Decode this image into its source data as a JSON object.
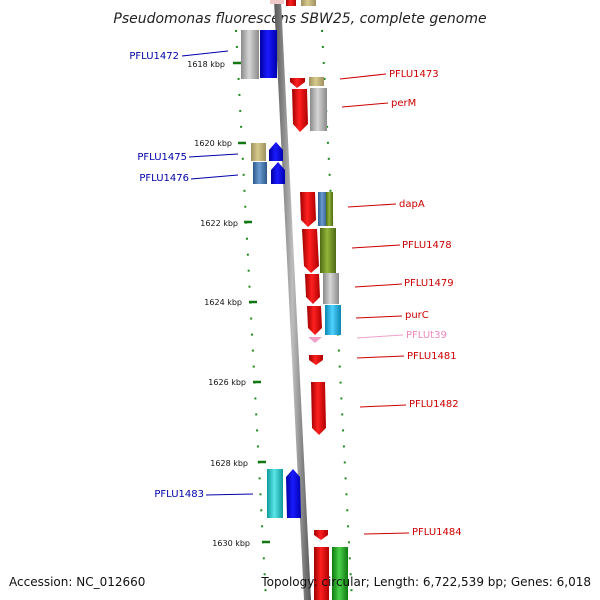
{
  "title": "Pseudomonas fluorescens SBW25, complete genome",
  "footer": {
    "accession": "Accession: NC_012660",
    "summary": "Topology: circular; Length: 6,722,539 bp; Genes: 6,018"
  },
  "ticks": [
    {
      "label": "1618 kbp"
    },
    {
      "label": "1620 kbp"
    },
    {
      "label": "1622 kbp"
    },
    {
      "label": "1624 kbp"
    },
    {
      "label": "1626 kbp"
    },
    {
      "label": "1628 kbp"
    },
    {
      "label": "1630 kbp"
    }
  ],
  "genes_left": [
    {
      "label": "PFLU1472",
      "color": "#0000aa"
    },
    {
      "label": "PFLU1475",
      "color": "#0000aa"
    },
    {
      "label": "PFLU1476",
      "color": "#0000aa"
    },
    {
      "label": "PFLU1483",
      "color": "#0000aa"
    }
  ],
  "genes_right": [
    {
      "label": "PFLU1473",
      "color": "#cc0000"
    },
    {
      "label": "perM",
      "color": "#cc0000"
    },
    {
      "label": "dapA",
      "color": "#cc0000"
    },
    {
      "label": "PFLU1478",
      "color": "#cc0000"
    },
    {
      "label": "PFLU1479",
      "color": "#cc0000"
    },
    {
      "label": "purC",
      "color": "#cc0000"
    },
    {
      "label": "PFLUt39",
      "color": "#ee88bb"
    },
    {
      "label": "PFLU1481",
      "color": "#cc0000"
    },
    {
      "label": "PFLU1482",
      "color": "#cc0000"
    },
    {
      "label": "PFLU1484",
      "color": "#cc0000"
    }
  ],
  "colors": {
    "backbone": "#888888",
    "tick_mark": "#117711",
    "reverse_strand_genes": "#0000dd",
    "forward_strand_genes": "#ee0000",
    "cog_gray": "#b0b0b0",
    "cog_khaki": "#c8b878",
    "cog_steelblue": "#4a7fb8",
    "cog_olive": "#7a9a2a",
    "cog_cyan": "#1ab8e8",
    "cog_teal": "#22c8c8",
    "cog_green": "#22aa22",
    "trna_pink": "#f0a0c8"
  }
}
